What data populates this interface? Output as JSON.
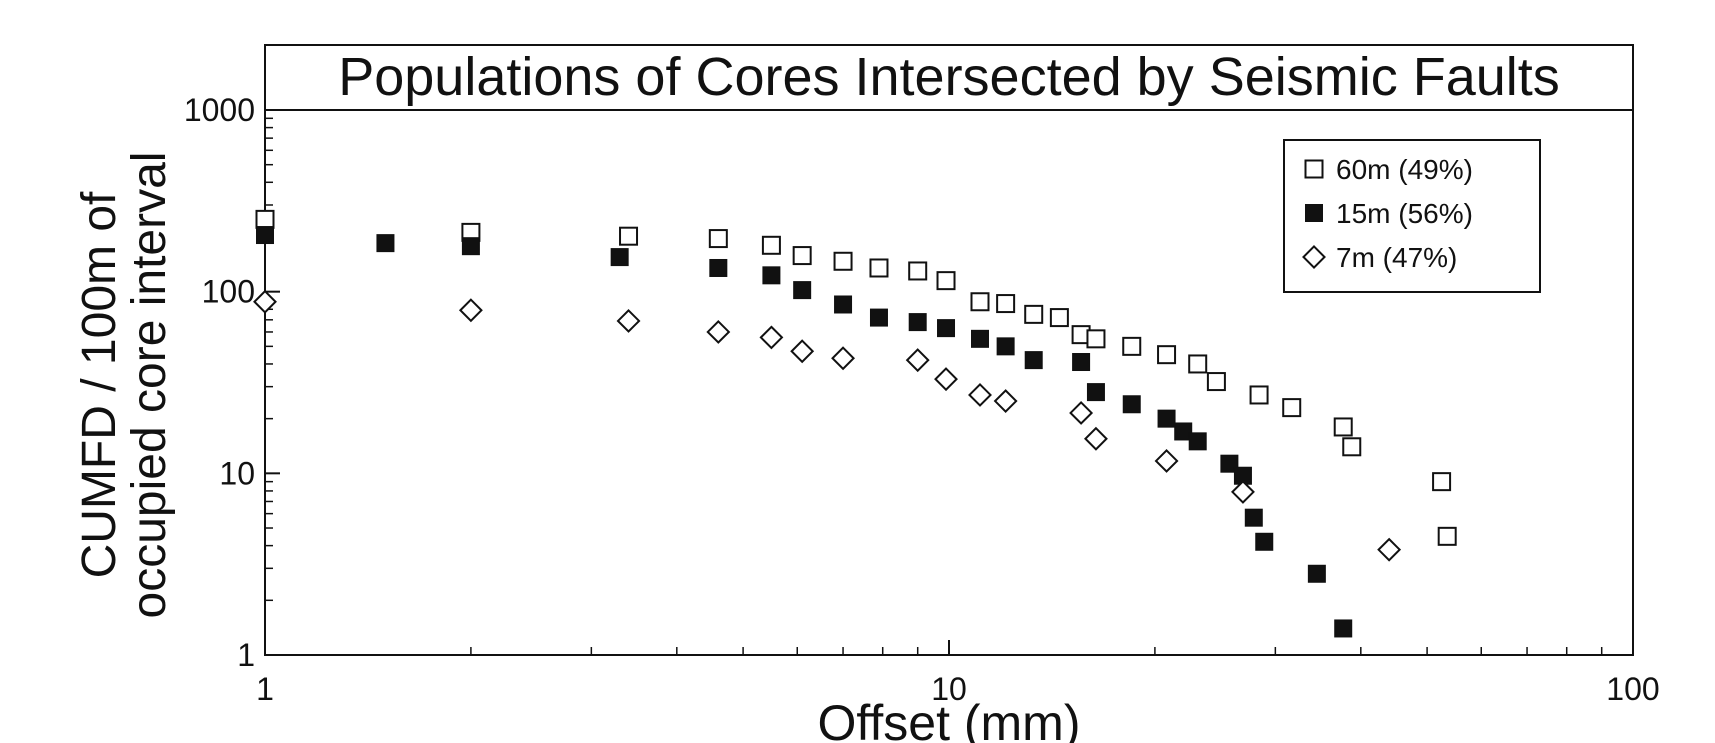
{
  "chart_data": {
    "type": "scatter",
    "title": "Populations of Cores Intersected by Seismic Faults",
    "xlabel": "Offset (mm)",
    "ylabel_line1": "CUMFD / 100m of",
    "ylabel_line2": "occupied core interval",
    "x_scale": "log",
    "y_scale": "log",
    "xlim": [
      1,
      100
    ],
    "ylim": [
      1,
      1000
    ],
    "x_ticks": [
      {
        "value": 1,
        "label": "1"
      },
      {
        "value": 10,
        "label": "10"
      },
      {
        "value": 100,
        "label": "100"
      }
    ],
    "y_ticks": [
      {
        "value": 1,
        "label": "1"
      },
      {
        "value": 10,
        "label": "10"
      },
      {
        "value": 100,
        "label": "100"
      },
      {
        "value": 1000,
        "label": "1000"
      }
    ],
    "grid": false,
    "legend_position": "top-right",
    "series": [
      {
        "name": "60m (49%)",
        "marker": "open-square",
        "color": "#111111",
        "points": [
          [
            1,
            250
          ],
          [
            2,
            212
          ],
          [
            3.4,
            202
          ],
          [
            4.6,
            196
          ],
          [
            5.5,
            180
          ],
          [
            6.1,
            158
          ],
          [
            7,
            147
          ],
          [
            7.9,
            135
          ],
          [
            9,
            130
          ],
          [
            9.9,
            115
          ],
          [
            11.1,
            88
          ],
          [
            12.1,
            86
          ],
          [
            13.3,
            75
          ],
          [
            14.5,
            72
          ],
          [
            15.6,
            58
          ],
          [
            16.4,
            55
          ],
          [
            18.5,
            50
          ],
          [
            20.8,
            45
          ],
          [
            23.1,
            40
          ],
          [
            24.6,
            32
          ],
          [
            28.4,
            27
          ],
          [
            31.7,
            23
          ],
          [
            37.7,
            18
          ],
          [
            38.8,
            14
          ],
          [
            52.5,
            9
          ],
          [
            53.5,
            4.5
          ]
        ]
      },
      {
        "name": "15m (56%)",
        "marker": "filled-square",
        "color": "#111111",
        "points": [
          [
            1,
            205
          ],
          [
            1.5,
            185
          ],
          [
            2,
            178
          ],
          [
            3.3,
            155
          ],
          [
            4.6,
            135
          ],
          [
            5.5,
            123
          ],
          [
            6.1,
            102
          ],
          [
            7,
            85
          ],
          [
            7.9,
            72
          ],
          [
            9,
            68
          ],
          [
            9.9,
            63
          ],
          [
            11.1,
            55
          ],
          [
            12.1,
            50
          ],
          [
            13.3,
            42
          ],
          [
            15.6,
            41
          ],
          [
            16.4,
            28
          ],
          [
            18.5,
            24
          ],
          [
            20.8,
            20
          ],
          [
            22,
            17
          ],
          [
            23.1,
            15
          ],
          [
            25.7,
            11.3
          ],
          [
            26.9,
            9.7
          ],
          [
            27.9,
            5.7
          ],
          [
            28.9,
            4.2
          ],
          [
            34.5,
            2.8
          ],
          [
            37.7,
            1.4
          ]
        ]
      },
      {
        "name": "7m (47%)",
        "marker": "open-diamond",
        "color": "#111111",
        "points": [
          [
            1,
            88
          ],
          [
            2,
            79
          ],
          [
            3.4,
            69
          ],
          [
            4.6,
            60
          ],
          [
            5.5,
            56
          ],
          [
            6.1,
            47
          ],
          [
            7,
            43
          ],
          [
            9,
            42
          ],
          [
            9.9,
            33
          ],
          [
            11.1,
            27
          ],
          [
            12.1,
            25
          ],
          [
            15.6,
            21.5
          ],
          [
            16.4,
            15.5
          ],
          [
            20.8,
            11.7
          ],
          [
            26.9,
            7.9
          ],
          [
            44,
            3.8
          ]
        ]
      }
    ]
  }
}
